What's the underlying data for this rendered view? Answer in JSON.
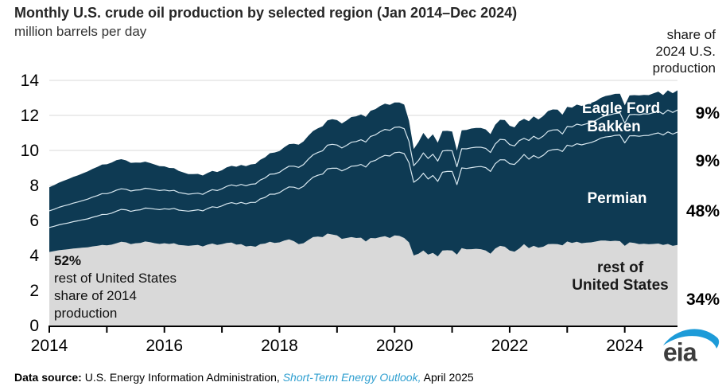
{
  "header": {
    "title": "Monthly U.S. crude oil production by selected region (Jan 2014–Dec 2024)",
    "subtitle": "million barrels per day",
    "right_note_lines": [
      "share of",
      "2024 U.S.",
      "production"
    ]
  },
  "chart_data": {
    "type": "area",
    "stacked": true,
    "title": "Monthly U.S. crude oil production by selected region (Jan 2014–Dec 2024)",
    "xlabel": "",
    "ylabel": "million barrels per day",
    "x_start": "2014-01",
    "x_end": "2024-12",
    "frequency": "monthly",
    "n_points": 132,
    "x_tick_labels": [
      "2014",
      "2016",
      "2018",
      "2020",
      "2022",
      "2024"
    ],
    "x_minor_ticks": "yearly",
    "ylim": [
      0,
      14
    ],
    "yticks": [
      0,
      2,
      4,
      6,
      8,
      10,
      12,
      14
    ],
    "grid": "horizontal",
    "grid_color": "#d9d9d9",
    "axis_color": "#000000",
    "divider_line_color": "#d8e8f0",
    "series": [
      {
        "name": "rest of United States",
        "color": "#d9d9d9",
        "share_2024": "34%",
        "values": [
          4.2,
          4.25,
          4.3,
          4.33,
          4.36,
          4.4,
          4.42,
          4.45,
          4.47,
          4.52,
          4.55,
          4.6,
          4.58,
          4.62,
          4.7,
          4.78,
          4.75,
          4.65,
          4.7,
          4.72,
          4.8,
          4.76,
          4.7,
          4.66,
          4.7,
          4.66,
          4.7,
          4.6,
          4.58,
          4.55,
          4.58,
          4.6,
          4.52,
          4.62,
          4.68,
          4.6,
          4.65,
          4.72,
          4.74,
          4.62,
          4.65,
          4.52,
          4.55,
          4.5,
          4.65,
          4.68,
          4.78,
          4.72,
          4.75,
          4.85,
          4.92,
          4.82,
          4.65,
          4.7,
          4.88,
          5.05,
          5.08,
          5.05,
          5.25,
          5.2,
          5.15,
          4.95,
          5.0,
          5.05,
          5.0,
          5.02,
          4.8,
          5.0,
          4.98,
          5.05,
          5.1,
          5.0,
          5.15,
          5.12,
          5.0,
          4.75,
          4.0,
          4.1,
          4.28,
          4.05,
          4.15,
          3.95,
          4.28,
          4.3,
          4.28,
          4.05,
          4.42,
          4.35,
          4.36,
          4.38,
          4.36,
          4.28,
          4.1,
          4.4,
          4.55,
          4.5,
          4.28,
          4.22,
          4.4,
          4.65,
          4.42,
          4.55,
          4.45,
          4.5,
          4.65,
          4.66,
          4.65,
          4.58,
          4.8,
          4.72,
          4.78,
          4.7,
          4.73,
          4.75,
          4.8,
          4.85,
          4.85,
          4.82,
          4.84,
          4.82,
          4.55,
          4.75,
          4.72,
          4.65,
          4.67,
          4.64,
          4.66,
          4.68,
          4.6,
          4.66,
          4.55,
          4.6
        ]
      },
      {
        "name": "Permian",
        "color": "#0e3a53",
        "share_2024": "48%",
        "values": [
          1.4,
          1.42,
          1.45,
          1.48,
          1.5,
          1.53,
          1.56,
          1.59,
          1.62,
          1.66,
          1.7,
          1.74,
          1.77,
          1.8,
          1.83,
          1.85,
          1.86,
          1.87,
          1.88,
          1.89,
          1.91,
          1.93,
          1.95,
          1.96,
          1.97,
          1.98,
          1.99,
          1.99,
          1.98,
          1.98,
          1.99,
          2.01,
          2.03,
          2.06,
          2.1,
          2.14,
          2.18,
          2.23,
          2.28,
          2.33,
          2.38,
          2.43,
          2.48,
          2.53,
          2.58,
          2.64,
          2.72,
          2.78,
          2.84,
          2.92,
          3.0,
          3.08,
          3.16,
          3.25,
          3.35,
          3.42,
          3.5,
          3.6,
          3.7,
          3.78,
          3.83,
          3.88,
          3.95,
          4.05,
          4.12,
          4.18,
          4.25,
          4.35,
          4.45,
          4.55,
          4.62,
          4.68,
          4.72,
          4.78,
          4.82,
          4.55,
          4.18,
          4.28,
          4.42,
          4.32,
          4.42,
          4.28,
          4.48,
          4.5,
          4.52,
          4.0,
          4.58,
          4.62,
          4.66,
          4.68,
          4.72,
          4.74,
          4.7,
          4.84,
          4.92,
          4.96,
          4.96,
          4.98,
          5.06,
          5.12,
          5.08,
          5.16,
          5.12,
          5.22,
          5.32,
          5.38,
          5.42,
          5.36,
          5.5,
          5.52,
          5.6,
          5.62,
          5.66,
          5.7,
          5.76,
          5.85,
          5.92,
          5.98,
          6.02,
          6.06,
          5.88,
          6.08,
          6.12,
          6.16,
          6.18,
          6.22,
          6.28,
          6.32,
          6.28,
          6.4,
          6.38,
          6.45
        ]
      },
      {
        "name": "Bakken",
        "color": "#0e3a53",
        "share_2024": "9%",
        "values": [
          0.95,
          0.97,
          1.0,
          1.02,
          1.04,
          1.06,
          1.08,
          1.1,
          1.13,
          1.15,
          1.17,
          1.19,
          1.18,
          1.19,
          1.2,
          1.18,
          1.17,
          1.16,
          1.15,
          1.14,
          1.13,
          1.12,
          1.11,
          1.09,
          1.07,
          1.05,
          1.03,
          1.01,
          0.99,
          0.97,
          0.96,
          0.95,
          0.94,
          0.96,
          0.98,
          0.97,
          0.98,
          1.0,
          1.01,
          1.02,
          1.03,
          1.03,
          1.04,
          1.06,
          1.08,
          1.11,
          1.14,
          1.16,
          1.16,
          1.17,
          1.18,
          1.2,
          1.22,
          1.24,
          1.26,
          1.28,
          1.3,
          1.33,
          1.35,
          1.37,
          1.33,
          1.31,
          1.34,
          1.37,
          1.39,
          1.41,
          1.43,
          1.45,
          1.46,
          1.47,
          1.48,
          1.47,
          1.45,
          1.44,
          1.42,
          1.22,
          0.95,
          1.05,
          1.16,
          1.17,
          1.21,
          1.16,
          1.21,
          1.2,
          1.18,
          1.02,
          1.1,
          1.12,
          1.13,
          1.12,
          1.1,
          1.1,
          1.08,
          1.13,
          1.16,
          1.15,
          1.09,
          1.06,
          1.1,
          0.92,
          1.07,
          1.1,
          1.08,
          1.1,
          1.12,
          1.13,
          1.11,
          1.0,
          1.07,
          1.1,
          1.12,
          1.12,
          1.13,
          1.15,
          1.16,
          1.18,
          1.21,
          1.24,
          1.25,
          1.26,
          1.13,
          1.21,
          1.22,
          1.23,
          1.24,
          1.22,
          1.22,
          1.24,
          1.2,
          1.25,
          1.24,
          1.26
        ]
      },
      {
        "name": "Eagle Ford",
        "color": "#0e3a53",
        "share_2024": "9%",
        "values": [
          1.35,
          1.38,
          1.41,
          1.44,
          1.47,
          1.5,
          1.52,
          1.55,
          1.58,
          1.61,
          1.64,
          1.66,
          1.68,
          1.7,
          1.71,
          1.69,
          1.65,
          1.61,
          1.58,
          1.55,
          1.52,
          1.47,
          1.43,
          1.39,
          1.35,
          1.31,
          1.27,
          1.23,
          1.19,
          1.15,
          1.12,
          1.1,
          1.08,
          1.07,
          1.07,
          1.06,
          1.06,
          1.08,
          1.09,
          1.1,
          1.11,
          1.12,
          1.13,
          1.14,
          1.16,
          1.18,
          1.2,
          1.22,
          1.22,
          1.24,
          1.26,
          1.28,
          1.3,
          1.32,
          1.34,
          1.36,
          1.38,
          1.4,
          1.42,
          1.43,
          1.42,
          1.4,
          1.42,
          1.44,
          1.44,
          1.45,
          1.44,
          1.46,
          1.47,
          1.47,
          1.47,
          1.45,
          1.42,
          1.4,
          1.38,
          1.18,
          0.95,
          1.05,
          1.14,
          1.1,
          1.14,
          1.05,
          1.14,
          1.12,
          1.1,
          0.92,
          1.05,
          1.08,
          1.1,
          1.1,
          1.1,
          1.08,
          1.05,
          1.1,
          1.12,
          1.12,
          1.08,
          1.06,
          1.1,
          1.11,
          1.1,
          1.13,
          1.12,
          1.14,
          1.16,
          1.17,
          1.15,
          1.1,
          1.12,
          1.1,
          1.12,
          1.1,
          1.1,
          1.12,
          1.1,
          1.12,
          1.13,
          1.12,
          1.12,
          1.1,
          1.02,
          1.1,
          1.1,
          1.1,
          1.08,
          1.08,
          1.1,
          1.12,
          1.08,
          1.12,
          1.1,
          1.12
        ]
      }
    ],
    "annotations": {
      "share_2014": {
        "pct": "52%",
        "line1": "rest of United States",
        "line2": "share of 2014",
        "line3": "production"
      }
    }
  },
  "labels": {
    "rest_line1": "rest of",
    "rest_line2": "United States"
  },
  "footer": {
    "prefix": "Data source:",
    "source": " U.S. Energy Information Administration, ",
    "publication": "Short-Term Energy Outlook,",
    "suffix": " April 2025"
  },
  "logo": {
    "text": "eia",
    "swoosh_color": "#1d9bd8",
    "text_color": "#3d3d3d"
  }
}
